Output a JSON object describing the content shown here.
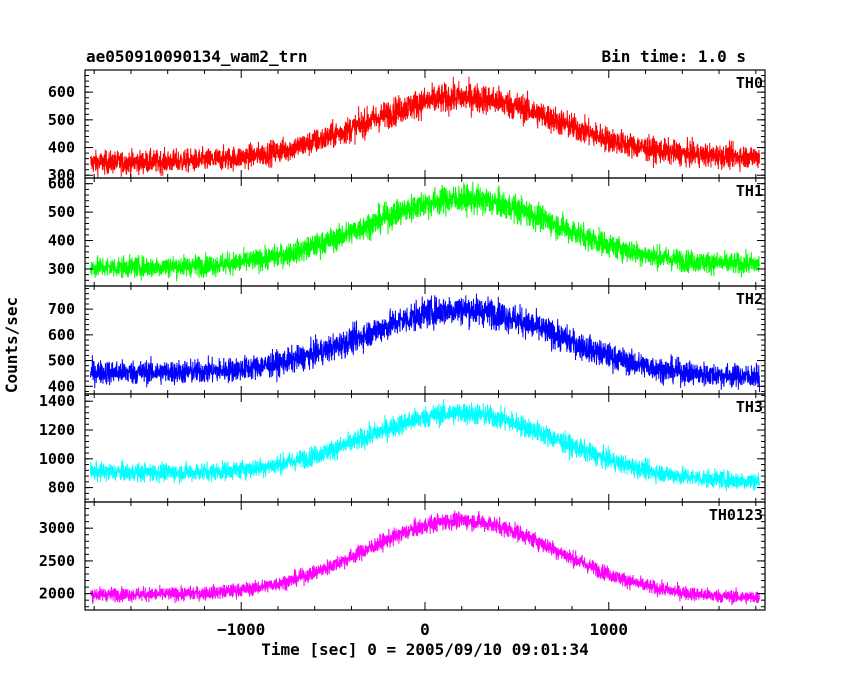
{
  "chart_data": {
    "type": "line",
    "title": "ae050910090134_wam2_trn",
    "subtitle": "Bin time: 1.0 s",
    "xlabel": "Time [sec] 0 = 2005/09/10 09:01:34",
    "ylabel": "Counts/sec",
    "xlim": [
      -1850,
      1850
    ],
    "x_ticks": [
      -1000,
      0,
      1000
    ],
    "x_tick_labels": [
      "−1000",
      "0",
      "1000"
    ],
    "panels": [
      {
        "name": "TH0",
        "color": "#ff0000",
        "ylim": [
          290,
          680
        ],
        "y_ticks": [
          300,
          400,
          500,
          600
        ],
        "baseline": 355,
        "peak": 580,
        "noise": 30,
        "peak_time": 200,
        "width": 520,
        "drift": 10
      },
      {
        "name": "TH1",
        "color": "#00ff00",
        "ylim": [
          240,
          620
        ],
        "y_ticks": [
          300,
          400,
          500,
          600
        ],
        "baseline": 310,
        "peak": 545,
        "noise": 27,
        "peak_time": 200,
        "width": 520,
        "drift": 5
      },
      {
        "name": "TH2",
        "color": "#0000ff",
        "ylim": [
          370,
          790
        ],
        "y_ticks": [
          400,
          500,
          600,
          700
        ],
        "baseline": 445,
        "peak": 700,
        "noise": 33,
        "peak_time": 200,
        "width": 520,
        "drift": -10
      },
      {
        "name": "TH3",
        "color": "#00ffff",
        "ylim": [
          700,
          1450
        ],
        "y_ticks": [
          800,
          1000,
          1200,
          1400
        ],
        "baseline": 875,
        "peak": 1320,
        "noise": 45,
        "peak_time": 200,
        "width": 520,
        "drift": -35
      },
      {
        "name": "TH0123",
        "color": "#ff00ff",
        "ylim": [
          1750,
          3400
        ],
        "y_ticks": [
          2000,
          2500,
          3000
        ],
        "baseline": 1960,
        "peak": 3120,
        "noise": 75,
        "peak_time": 200,
        "width": 520,
        "drift": -30
      }
    ]
  }
}
